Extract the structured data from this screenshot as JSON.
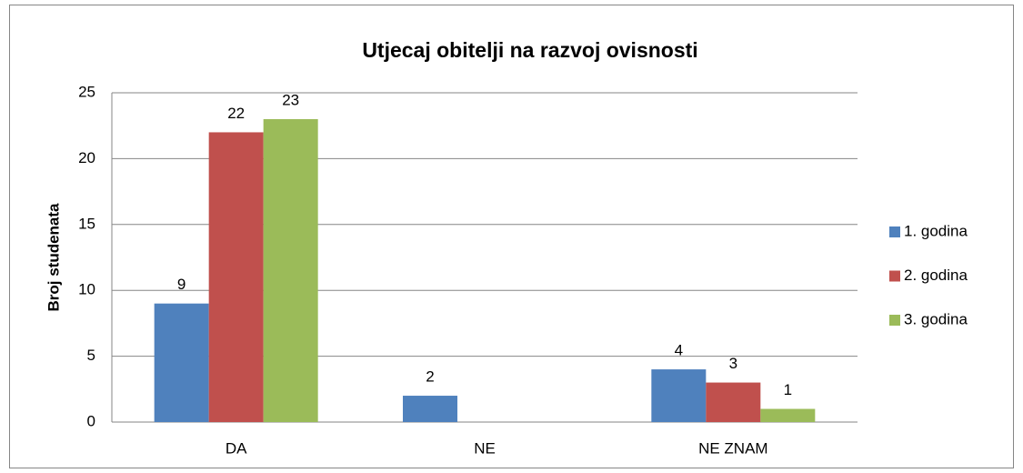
{
  "chart_data": {
    "type": "bar",
    "title": "Utjecaj obitelji na razvoj ovisnosti",
    "y_label": "Broj studenata",
    "categories": [
      "DA",
      "NE",
      "NE ZNAM"
    ],
    "series": [
      {
        "name": "1. godina",
        "color": "#4f81bd",
        "values": [
          9,
          2,
          4
        ]
      },
      {
        "name": "2. godina",
        "color": "#c0504d",
        "values": [
          22,
          null,
          3
        ]
      },
      {
        "name": "3. godina",
        "color": "#9bbb59",
        "values": [
          23,
          null,
          1
        ]
      }
    ],
    "ylim": [
      0,
      25
    ],
    "yticks": [
      0,
      5,
      10,
      15,
      20,
      25
    ],
    "grid": true,
    "legend": "right"
  }
}
